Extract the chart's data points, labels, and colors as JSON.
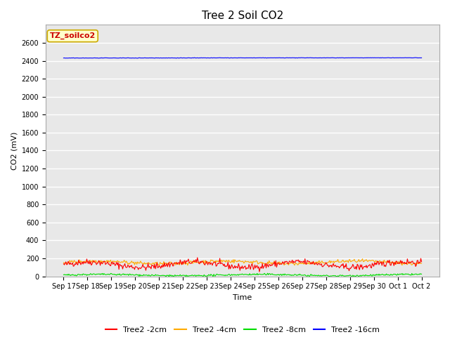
{
  "title": "Tree 2 Soil CO2",
  "ylabel": "CO2 (mV)",
  "xlabel": "Time",
  "annotation_text": "TZ_soilco2",
  "annotation_bg": "#ffffcc",
  "annotation_border": "#ccaa00",
  "plot_bg_color": "#e8e8e8",
  "fig_bg_color": "#ffffff",
  "ylim": [
    0,
    2800
  ],
  "yticks": [
    0,
    200,
    400,
    600,
    800,
    1000,
    1200,
    1400,
    1600,
    1800,
    2000,
    2200,
    2400,
    2600
  ],
  "n_points": 480,
  "total_days": 16,
  "series": {
    "Tree2 -2cm": {
      "color": "#ff0000",
      "base": 130,
      "amp": 30,
      "freq": 1.5,
      "noise": 18
    },
    "Tree2 -4cm": {
      "color": "#ffaa00",
      "base": 155,
      "amp": 15,
      "freq": 1.2,
      "noise": 10
    },
    "Tree2 -8cm": {
      "color": "#00dd00",
      "base": 14,
      "amp": 8,
      "freq": 1.0,
      "noise": 5
    },
    "Tree2 -16cm": {
      "color": "#0000ff",
      "base": 2430,
      "amp": 3,
      "freq": 0.1,
      "noise": 1
    }
  },
  "plot_order": [
    "Tree2 -16cm",
    "Tree2 -4cm",
    "Tree2 -8cm",
    "Tree2 -2cm"
  ],
  "xtick_labels": [
    "Sep 17",
    "Sep 18",
    "Sep 19",
    "Sep 20",
    "Sep 21",
    "Sep 22",
    "Sep 23",
    "Sep 24",
    "Sep 25",
    "Sep 26",
    "Sep 27",
    "Sep 28",
    "Sep 29",
    "Sep 30",
    "Oct 1",
    "Oct 2"
  ],
  "grid_color": "#ffffff",
  "tick_fontsize": 7,
  "axis_label_fontsize": 8,
  "legend_fontsize": 8,
  "title_fontsize": 11,
  "annotation_fontsize": 8,
  "linewidth": 0.8
}
